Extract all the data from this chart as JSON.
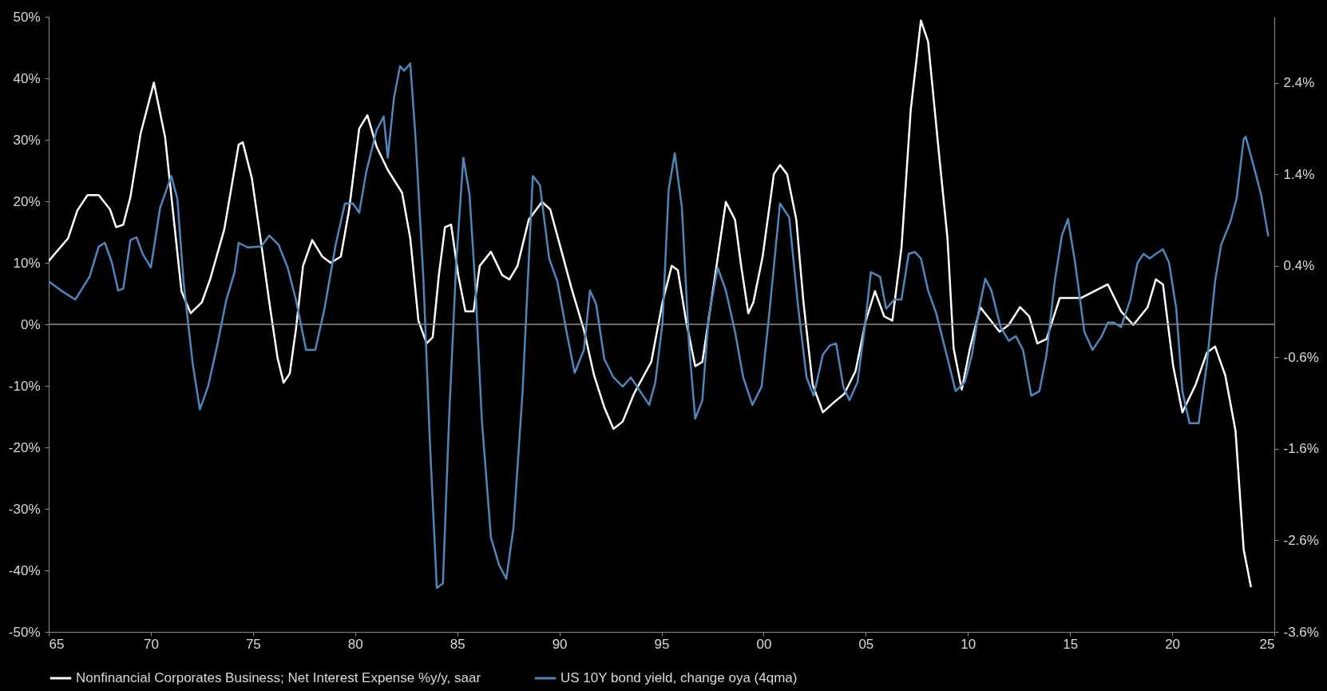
{
  "chart_data": {
    "type": "line",
    "legend": "bottom",
    "xlim": [
      1965,
      2025
    ],
    "xticks": [
      {
        "value": 1965,
        "label": "65"
      },
      {
        "value": 1970,
        "label": "70"
      },
      {
        "value": 1975,
        "label": "75"
      },
      {
        "value": 1980,
        "label": "80"
      },
      {
        "value": 1985,
        "label": "85"
      },
      {
        "value": 1990,
        "label": "90"
      },
      {
        "value": 1995,
        "label": "95"
      },
      {
        "value": 2000,
        "label": "00"
      },
      {
        "value": 2005,
        "label": "05"
      },
      {
        "value": 2010,
        "label": "10"
      },
      {
        "value": 2015,
        "label": "15"
      },
      {
        "value": 2020,
        "label": "20"
      },
      {
        "value": 2025,
        "label": "25"
      }
    ],
    "ylim": [
      -50,
      50
    ],
    "yticks": [
      {
        "value": -50,
        "label": "-50%"
      },
      {
        "value": -40,
        "label": "-40%"
      },
      {
        "value": -30,
        "label": "-30%"
      },
      {
        "value": -20,
        "label": "-20%"
      },
      {
        "value": -10,
        "label": "-10%"
      },
      {
        "value": 0,
        "label": "0%"
      },
      {
        "value": 10,
        "label": "10%"
      },
      {
        "value": 20,
        "label": "20%"
      },
      {
        "value": 30,
        "label": "30%"
      },
      {
        "value": 40,
        "label": "40%"
      },
      {
        "value": 50,
        "label": "50%"
      }
    ],
    "y2lim": [
      -3.6,
      3.12
    ],
    "y2ticks": [
      {
        "value": -3.6,
        "label": "-3.6%"
      },
      {
        "value": -2.6,
        "label": "-2.6%"
      },
      {
        "value": -1.6,
        "label": "-1.6%"
      },
      {
        "value": -0.6,
        "label": "-0.6%"
      },
      {
        "value": 0.4,
        "label": "0.4%"
      },
      {
        "value": 1.4,
        "label": "1.4%"
      },
      {
        "value": 2.4,
        "label": "2.4%"
      }
    ],
    "ref_lines": [
      {
        "axis": "y",
        "value": 0,
        "color": "#8c8c8c"
      }
    ],
    "series": [
      {
        "name": "Nonfinancial Corporates Business; Net Interest Expense %y/y, saar",
        "color": "#ffffff",
        "x": [
          1965.0,
          1965.95,
          1966.4,
          1966.9,
          1967.45,
          1968.0,
          1968.3,
          1968.65,
          1969.0,
          1969.5,
          1970.15,
          1970.7,
          1971.2,
          1971.5,
          1971.95,
          1972.5,
          1972.9,
          1973.6,
          1974.3,
          1974.5,
          1974.95,
          1975.4,
          1975.8,
          1976.2,
          1976.5,
          1976.8,
          1977.1,
          1977.45,
          1977.9,
          1978.4,
          1978.8,
          1979.3,
          1979.7,
          1980.2,
          1980.6,
          1981.05,
          1981.6,
          1982.3,
          1982.7,
          1983.1,
          1983.5,
          1983.8,
          1984.1,
          1984.4,
          1984.7,
          1985.05,
          1985.4,
          1985.8,
          1986.1,
          1986.65,
          1987.2,
          1987.55,
          1987.95,
          1988.5,
          1989.15,
          1989.55,
          1990.0,
          1990.6,
          1991.2,
          1991.7,
          1992.2,
          1992.65,
          1993.1,
          1993.65,
          1994.5,
          1995.05,
          1995.5,
          1995.8,
          1996.2,
          1996.65,
          1997.0,
          1997.5,
          1998.15,
          1998.6,
          1998.9,
          1999.25,
          1999.5,
          1999.95,
          2000.5,
          2000.8,
          2001.15,
          2001.6,
          2001.95,
          2002.4,
          2002.9,
          2003.4,
          2003.95,
          2004.5,
          2005.0,
          2005.45,
          2005.9,
          2006.3,
          2006.75,
          2007.2,
          2007.7,
          2008.05,
          2008.55,
          2009.0,
          2009.3,
          2009.7,
          2010.1,
          2010.6,
          2011.05,
          2011.55,
          2012.0,
          2012.55,
          2013.0,
          2013.4,
          2013.85,
          2014.5,
          2015.55,
          2016.85,
          2017.5,
          2018.1,
          2018.8,
          2019.2,
          2019.55,
          2020.05,
          2020.5,
          2021.15,
          2021.7,
          2022.1,
          2022.6,
          2023.1,
          2023.5,
          2023.85
        ],
        "values": [
          10.3,
          14,
          18.5,
          21,
          21,
          18.7,
          15.8,
          16.2,
          20.7,
          31,
          39.3,
          30.4,
          14.7,
          5.4,
          1.8,
          3.6,
          7.3,
          15.5,
          29.2,
          29.6,
          23.7,
          13.2,
          3.6,
          -5.4,
          -9.5,
          -8,
          -0.9,
          9.5,
          13.7,
          11,
          10,
          11,
          18.5,
          31.8,
          34,
          28.9,
          25.1,
          21.4,
          14,
          0.6,
          -3.1,
          -2.1,
          8,
          15.8,
          16.2,
          8,
          2.1,
          2.1,
          9.5,
          11.8,
          8,
          7.3,
          9.5,
          17,
          19.9,
          18.7,
          13.2,
          5.8,
          -0.9,
          -8.3,
          -13.5,
          -17,
          -15.8,
          -11.3,
          -6.1,
          3.6,
          9.5,
          8.8,
          0.6,
          -6.8,
          -6.1,
          5.1,
          19.9,
          17,
          9.5,
          1.8,
          3.6,
          11,
          24.4,
          25.9,
          24.4,
          17,
          3.6,
          -9.8,
          -14.3,
          -12.8,
          -11.3,
          -7.6,
          0.6,
          5.4,
          1.3,
          0.6,
          12.5,
          34.8,
          49.4,
          46,
          28.9,
          14,
          -3.9,
          -10.6,
          -3.9,
          2.8,
          0.9,
          -1.2,
          -0.1,
          2.8,
          1.3,
          -3.1,
          -2.4,
          4.3,
          4.3,
          6.5,
          2.1,
          -0.1,
          2.8,
          7.3,
          6.5,
          -6.8,
          -14.3,
          -9.8,
          -4.6,
          -3.6,
          -8.3,
          -17.3,
          -36.6,
          -42.6
        ]
      },
      {
        "name": "US 10Y bond yield, change oya (4qma)",
        "color": "#4f86bd",
        "axis": "y2",
        "x": [
          1965.0,
          1965.6,
          1966.3,
          1967.0,
          1967.45,
          1967.75,
          1968.1,
          1968.4,
          1968.65,
          1969.0,
          1969.3,
          1969.6,
          1970.0,
          1970.45,
          1971.0,
          1971.3,
          1971.6,
          1972.05,
          1972.4,
          1972.8,
          1973.25,
          1973.7,
          1974.1,
          1974.3,
          1974.75,
          1975.4,
          1975.8,
          1976.25,
          1976.7,
          1977.1,
          1977.6,
          1978.05,
          1978.5,
          1979.05,
          1979.5,
          1979.9,
          1980.2,
          1980.55,
          1981.05,
          1981.4,
          1981.6,
          1981.9,
          1982.2,
          1982.4,
          1982.7,
          1982.95,
          1983.35,
          1983.65,
          1984.0,
          1984.3,
          1984.6,
          1984.95,
          1985.3,
          1985.6,
          1985.9,
          1986.2,
          1986.65,
          1987.05,
          1987.4,
          1987.75,
          1988.2,
          1988.7,
          1989.05,
          1989.5,
          1989.9,
          1990.35,
          1990.75,
          1991.2,
          1991.5,
          1991.8,
          1992.2,
          1992.65,
          1993.1,
          1993.5,
          1993.95,
          1994.4,
          1994.7,
          1995.05,
          1995.35,
          1995.65,
          1996.0,
          1996.35,
          1996.65,
          1997.0,
          1997.3,
          1997.75,
          1998.15,
          1998.6,
          1999.0,
          1999.45,
          1999.9,
          2000.3,
          2000.8,
          2001.25,
          2001.7,
          2002.1,
          2002.45,
          2002.9,
          2003.25,
          2003.55,
          2003.9,
          2004.2,
          2004.6,
          2004.95,
          2005.25,
          2005.7,
          2006.0,
          2006.4,
          2006.75,
          2007.1,
          2007.4,
          2007.7,
          2008.05,
          2008.45,
          2008.9,
          2009.4,
          2009.85,
          2010.2,
          2010.55,
          2010.85,
          2011.15,
          2011.6,
          2012.0,
          2012.35,
          2012.7,
          2013.1,
          2013.5,
          2013.85,
          2014.25,
          2014.6,
          2014.9,
          2015.25,
          2015.7,
          2016.1,
          2016.55,
          2016.85,
          2017.15,
          2017.5,
          2017.95,
          2018.3,
          2018.6,
          2018.9,
          2019.2,
          2019.55,
          2019.85,
          2020.2,
          2020.5,
          2020.85,
          2021.3,
          2021.7,
          2022.1,
          2022.4,
          2022.85,
          2023.15,
          2023.5,
          2023.6,
          2024.0,
          2024.35,
          2024.7
        ],
        "values": [
          0.23,
          0.13,
          0.03,
          0.28,
          0.61,
          0.65,
          0.43,
          0.13,
          0.15,
          0.68,
          0.71,
          0.53,
          0.38,
          1.03,
          1.38,
          1.13,
          0.23,
          -0.67,
          -1.17,
          -0.92,
          -0.47,
          0.03,
          0.33,
          0.65,
          0.6,
          0.61,
          0.73,
          0.63,
          0.38,
          0.03,
          -0.52,
          -0.52,
          -0.07,
          0.63,
          1.08,
          1.08,
          0.98,
          1.43,
          1.88,
          2.03,
          1.58,
          2.23,
          2.58,
          2.53,
          2.61,
          1.83,
          0.23,
          -1.47,
          -3.12,
          -3.07,
          -1.27,
          0.43,
          1.58,
          1.18,
          0.13,
          -1.27,
          -2.57,
          -2.87,
          -3.02,
          -2.47,
          -0.97,
          1.38,
          1.28,
          0.48,
          0.23,
          -0.32,
          -0.77,
          -0.52,
          0.13,
          -0.02,
          -0.62,
          -0.82,
          -0.92,
          -0.82,
          -0.97,
          -1.12,
          -0.87,
          -0.22,
          1.23,
          1.63,
          1.03,
          -0.47,
          -1.27,
          -1.07,
          -0.17,
          0.38,
          0.13,
          -0.32,
          -0.82,
          -1.12,
          -0.92,
          -0.07,
          1.08,
          0.93,
          -0.07,
          -0.82,
          -1.02,
          -0.57,
          -0.47,
          -0.45,
          -0.92,
          -1.07,
          -0.87,
          -0.27,
          0.33,
          0.28,
          -0.07,
          0.03,
          0.03,
          0.53,
          0.55,
          0.48,
          0.13,
          -0.12,
          -0.52,
          -0.97,
          -0.87,
          -0.57,
          -0.07,
          0.26,
          0.13,
          -0.27,
          -0.42,
          -0.37,
          -0.52,
          -1.02,
          -0.97,
          -0.57,
          0.23,
          0.73,
          0.91,
          0.43,
          -0.32,
          -0.52,
          -0.37,
          -0.22,
          -0.22,
          -0.27,
          0.03,
          0.43,
          0.53,
          0.48,
          0.53,
          0.58,
          0.43,
          -0.07,
          -0.97,
          -1.32,
          -1.32,
          -0.67,
          0.23,
          0.63,
          0.88,
          1.13,
          1.78,
          1.81,
          1.48,
          1.18,
          0.73
        ]
      }
    ]
  }
}
